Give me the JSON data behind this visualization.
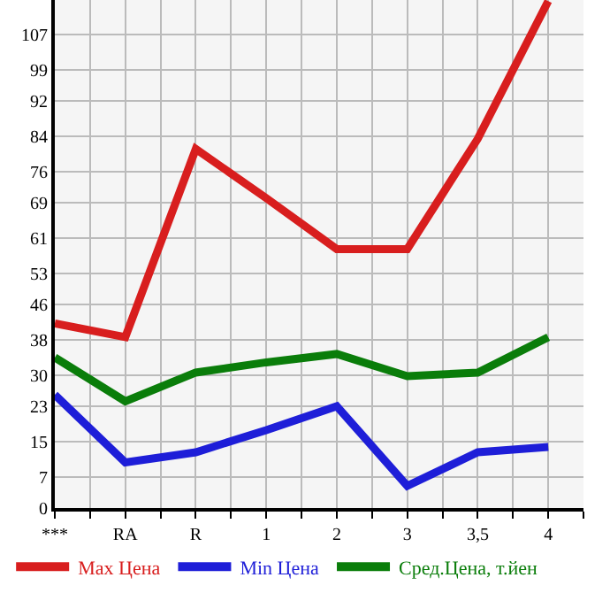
{
  "chart_data": {
    "type": "line",
    "categories": [
      "***",
      "RA",
      "R",
      "1",
      "2",
      "3",
      "3,5",
      "4"
    ],
    "series": [
      {
        "name": "Max Цена",
        "color": "#d81e1e",
        "values": [
          41.7,
          38.6,
          81.1,
          70,
          58.5,
          58.5,
          83.4,
          114.5
        ]
      },
      {
        "name": "Min Цена",
        "color": "#1e1ed8",
        "values": [
          25.6,
          10.3,
          12.6,
          17.6,
          23,
          5,
          12.6,
          13.8
        ]
      },
      {
        "name": "Сред.Цена, т.йен",
        "color": "#0a7d0a",
        "values": [
          34,
          24.1,
          30.6,
          32.9,
          34.8,
          29.8,
          30.6,
          38.6
        ]
      }
    ],
    "ylim": [
      0,
      114.75
    ],
    "yticks": [
      0,
      7,
      15,
      23,
      30,
      38,
      46,
      53,
      61,
      69,
      76,
      84,
      92,
      99,
      107
    ],
    "grid": true,
    "legend": "bottom",
    "marker": "none",
    "line_style": "solid"
  }
}
